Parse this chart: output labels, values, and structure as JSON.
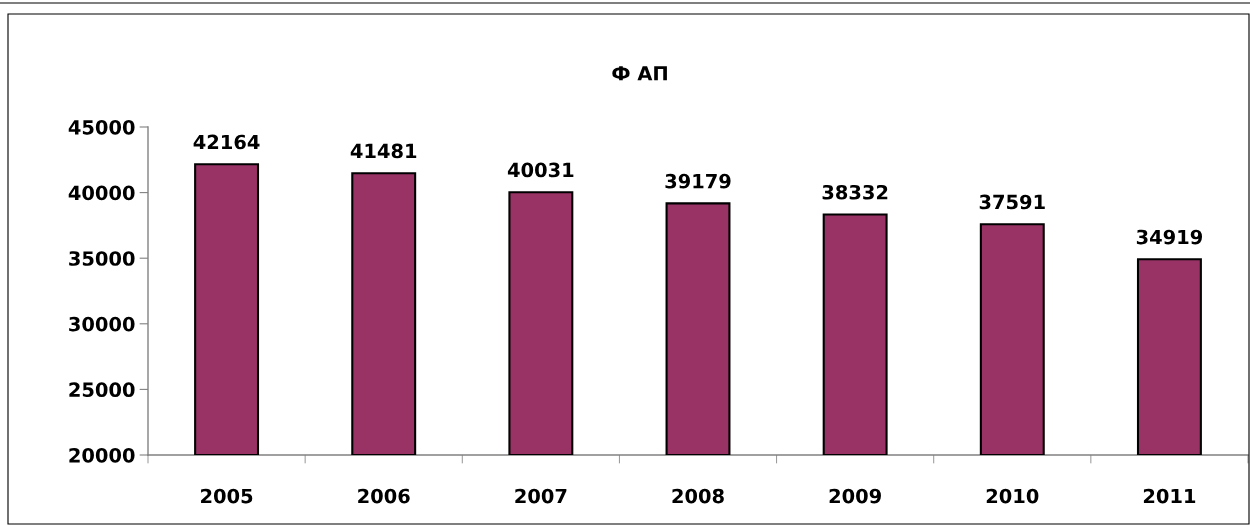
{
  "chart_data": {
    "type": "bar",
    "title": "Ф АП",
    "categories": [
      "2005",
      "2006",
      "2007",
      "2008",
      "2009",
      "2010",
      "2011"
    ],
    "values": [
      42164,
      41481,
      40031,
      39179,
      38332,
      37591,
      34919
    ],
    "color": "#993366",
    "ylim": [
      20000,
      45000
    ],
    "yticks": [
      20000,
      25000,
      30000,
      35000,
      40000,
      45000
    ],
    "data_labels": true
  }
}
